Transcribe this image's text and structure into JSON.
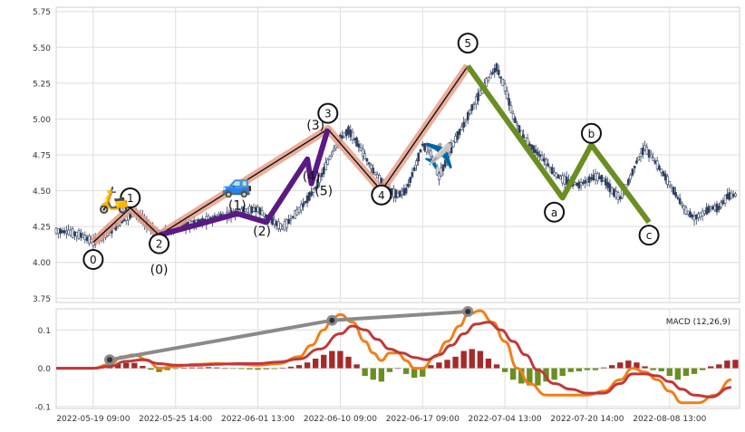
{
  "chart_data": [
    {
      "type": "candlestick",
      "panel": "price",
      "yticks": [
        "3.75",
        "4.00",
        "4.25",
        "4.50",
        "4.75",
        "5.00",
        "5.25",
        "5.50",
        "5.75"
      ],
      "ylim": [
        3.72,
        5.78
      ],
      "xticks": [
        {
          "t": 0,
          "label": "2022-05-19 09:00"
        },
        {
          "t": 20,
          "label": "2022-05-25 14:00"
        },
        {
          "t": 40,
          "label": "2022-06-01 13:00"
        },
        {
          "t": 60,
          "label": "2022-06-10 09:00"
        },
        {
          "t": 80,
          "label": "2022-06-17 09:00"
        },
        {
          "t": 100,
          "label": "2022-07-04 13:00"
        },
        {
          "t": 120,
          "label": "2022-07-20 14:00"
        },
        {
          "t": 140,
          "label": "2022-08-08 13:00"
        }
      ],
      "xlim": [
        -9,
        157
      ],
      "grid": true,
      "price_path": [
        [
          -9,
          4.22
        ],
        [
          -6,
          4.21
        ],
        [
          -3,
          4.19
        ],
        [
          0,
          4.14
        ],
        [
          3,
          4.2
        ],
        [
          6,
          4.26
        ],
        [
          9,
          4.33
        ],
        [
          10,
          4.36
        ],
        [
          12,
          4.3
        ],
        [
          14,
          4.24
        ],
        [
          16,
          4.2
        ],
        [
          19,
          4.22
        ],
        [
          22,
          4.26
        ],
        [
          26,
          4.28
        ],
        [
          30,
          4.31
        ],
        [
          34,
          4.34
        ],
        [
          36,
          4.36
        ],
        [
          40,
          4.37
        ],
        [
          42,
          4.32
        ],
        [
          44,
          4.28
        ],
        [
          46,
          4.24
        ],
        [
          48,
          4.3
        ],
        [
          51,
          4.4
        ],
        [
          54,
          4.52
        ],
        [
          56,
          4.64
        ],
        [
          58,
          4.76
        ],
        [
          60,
          4.86
        ],
        [
          62,
          4.92
        ],
        [
          64,
          4.84
        ],
        [
          66,
          4.74
        ],
        [
          68,
          4.64
        ],
        [
          70,
          4.56
        ],
        [
          72,
          4.5
        ],
        [
          74,
          4.47
        ],
        [
          76,
          4.5
        ],
        [
          78,
          4.65
        ],
        [
          80,
          4.82
        ],
        [
          82,
          4.76
        ],
        [
          84,
          4.6
        ],
        [
          86,
          4.72
        ],
        [
          88,
          4.86
        ],
        [
          90,
          4.96
        ],
        [
          92,
          5.08
        ],
        [
          94,
          5.18
        ],
        [
          96,
          5.28
        ],
        [
          98,
          5.36
        ],
        [
          100,
          5.22
        ],
        [
          102,
          5.02
        ],
        [
          104,
          4.9
        ],
        [
          106,
          4.82
        ],
        [
          108,
          4.76
        ],
        [
          110,
          4.7
        ],
        [
          112,
          4.62
        ],
        [
          114,
          4.58
        ],
        [
          116,
          4.56
        ],
        [
          118,
          4.54
        ],
        [
          120,
          4.57
        ],
        [
          122,
          4.6
        ],
        [
          124,
          4.58
        ],
        [
          126,
          4.5
        ],
        [
          128,
          4.45
        ],
        [
          130,
          4.56
        ],
        [
          132,
          4.7
        ],
        [
          134,
          4.8
        ],
        [
          136,
          4.72
        ],
        [
          138,
          4.64
        ],
        [
          140,
          4.55
        ],
        [
          142,
          4.45
        ],
        [
          144,
          4.36
        ],
        [
          146,
          4.31
        ],
        [
          148,
          4.34
        ],
        [
          150,
          4.38
        ],
        [
          152,
          4.38
        ],
        [
          154,
          4.46
        ],
        [
          156,
          4.47
        ]
      ],
      "primary_wave_line": [
        [
          0,
          4.14
        ],
        [
          9,
          4.38
        ],
        [
          16,
          4.19
        ],
        [
          57,
          4.93
        ],
        [
          70,
          4.5
        ],
        [
          91,
          5.37
        ]
      ],
      "primary_wave_color": "#e8a08a",
      "subwave_line": [
        [
          16,
          4.19
        ],
        [
          35,
          4.34
        ],
        [
          42,
          4.28
        ],
        [
          52,
          4.72
        ],
        [
          53,
          4.55
        ],
        [
          57,
          4.93
        ]
      ],
      "subwave_color": "#5a1a86",
      "correction_line": [
        [
          91,
          5.37
        ],
        [
          114,
          4.45
        ],
        [
          121,
          4.82
        ],
        [
          135,
          4.28
        ]
      ],
      "correction_color": "#6b8e23",
      "labels": [
        {
          "t": 0,
          "v": 4.02,
          "text": "0",
          "circle": true
        },
        {
          "t": 9,
          "v": 4.45,
          "text": "1",
          "circle": true
        },
        {
          "t": 16,
          "v": 4.13,
          "text": "2",
          "circle": true
        },
        {
          "t": 57,
          "v": 5.04,
          "text": "3",
          "circle": true
        },
        {
          "t": 70,
          "v": 4.47,
          "text": "4",
          "circle": true
        },
        {
          "t": 91,
          "v": 5.53,
          "text": "5",
          "circle": true
        },
        {
          "t": 112,
          "v": 4.35,
          "text": "a",
          "circle": true
        },
        {
          "t": 121,
          "v": 4.9,
          "text": "b",
          "circle": true
        },
        {
          "t": 135,
          "v": 4.19,
          "text": "c",
          "circle": true
        },
        {
          "t": 16,
          "v": 3.95,
          "text": "(0)",
          "circle": false
        },
        {
          "t": 35,
          "v": 4.4,
          "text": "(1)",
          "circle": false
        },
        {
          "t": 41,
          "v": 4.22,
          "text": "(2)",
          "circle": false
        },
        {
          "t": 54,
          "v": 4.96,
          "text": "(3)",
          "circle": false
        },
        {
          "t": 53,
          "v": 4.6,
          "text": "(4)",
          "circle": false
        },
        {
          "t": 56,
          "v": 4.5,
          "text": "(5)",
          "circle": false
        }
      ],
      "emojis": [
        {
          "name": "scooter-icon",
          "t": 5,
          "v": 4.44,
          "char": "🛵"
        },
        {
          "name": "car-icon",
          "t": 35,
          "v": 4.55,
          "char": "🚙"
        },
        {
          "name": "airplane-icon",
          "t": 84,
          "v": 4.75,
          "char": "✈️"
        }
      ]
    },
    {
      "type": "macd",
      "panel": "indicator",
      "legend": "MACD (12,26,9)",
      "yticks": [
        "-0.1",
        "0.0",
        "0.1"
      ],
      "ylim": [
        -0.105,
        0.155
      ],
      "xlim": [
        -9,
        157
      ],
      "macd_line": [
        [
          -9,
          0.0
        ],
        [
          -4,
          0.0
        ],
        [
          0,
          0.0
        ],
        [
          4,
          0.01
        ],
        [
          7,
          0.03
        ],
        [
          10,
          0.035
        ],
        [
          13,
          0.022
        ],
        [
          16,
          0.0
        ],
        [
          20,
          0.005
        ],
        [
          25,
          0.01
        ],
        [
          30,
          0.012
        ],
        [
          35,
          0.01
        ],
        [
          40,
          0.008
        ],
        [
          45,
          0.012
        ],
        [
          50,
          0.03
        ],
        [
          53,
          0.06
        ],
        [
          56,
          0.1
        ],
        [
          58,
          0.13
        ],
        [
          60,
          0.14
        ],
        [
          63,
          0.12
        ],
        [
          66,
          0.07
        ],
        [
          68,
          0.04
        ],
        [
          70,
          0.02
        ],
        [
          72,
          0.04
        ],
        [
          74,
          0.04
        ],
        [
          76,
          0.02
        ],
        [
          78,
          0.0
        ],
        [
          80,
          0.0
        ],
        [
          83,
          0.03
        ],
        [
          86,
          0.07
        ],
        [
          89,
          0.11
        ],
        [
          91,
          0.14
        ],
        [
          94,
          0.15
        ],
        [
          97,
          0.12
        ],
        [
          100,
          0.07
        ],
        [
          103,
          0.0
        ],
        [
          106,
          -0.04
        ],
        [
          110,
          -0.07
        ],
        [
          115,
          -0.07
        ],
        [
          120,
          -0.07
        ],
        [
          124,
          -0.06
        ],
        [
          128,
          -0.03
        ],
        [
          131,
          0.0
        ],
        [
          134,
          -0.01
        ],
        [
          137,
          -0.03
        ],
        [
          140,
          -0.06
        ],
        [
          143,
          -0.09
        ],
        [
          147,
          -0.09
        ],
        [
          151,
          -0.07
        ],
        [
          155,
          -0.03
        ]
      ],
      "macd_color": "#f07f1a",
      "signal_line": [
        [
          -9,
          0.0
        ],
        [
          0,
          0.0
        ],
        [
          4,
          0.005
        ],
        [
          8,
          0.018
        ],
        [
          12,
          0.022
        ],
        [
          16,
          0.012
        ],
        [
          20,
          0.008
        ],
        [
          25,
          0.008
        ],
        [
          30,
          0.01
        ],
        [
          35,
          0.012
        ],
        [
          40,
          0.012
        ],
        [
          45,
          0.016
        ],
        [
          50,
          0.024
        ],
        [
          55,
          0.05
        ],
        [
          60,
          0.09
        ],
        [
          63,
          0.11
        ],
        [
          66,
          0.1
        ],
        [
          69,
          0.075
        ],
        [
          72,
          0.05
        ],
        [
          75,
          0.04
        ],
        [
          78,
          0.028
        ],
        [
          81,
          0.022
        ],
        [
          84,
          0.035
        ],
        [
          87,
          0.06
        ],
        [
          90,
          0.09
        ],
        [
          93,
          0.115
        ],
        [
          96,
          0.12
        ],
        [
          99,
          0.1
        ],
        [
          102,
          0.07
        ],
        [
          105,
          0.035
        ],
        [
          108,
          -0.005
        ],
        [
          112,
          -0.04
        ],
        [
          116,
          -0.055
        ],
        [
          120,
          -0.065
        ],
        [
          124,
          -0.065
        ],
        [
          128,
          -0.04
        ],
        [
          131,
          -0.015
        ],
        [
          134,
          -0.015
        ],
        [
          137,
          -0.02
        ],
        [
          140,
          -0.035
        ],
        [
          143,
          -0.055
        ],
        [
          146,
          -0.07
        ],
        [
          150,
          -0.075
        ],
        [
          155,
          -0.05
        ]
      ],
      "signal_color": "#c0393b",
      "histogram": [
        [
          0,
          0.0
        ],
        [
          2,
          0.003
        ],
        [
          4,
          0.006
        ],
        [
          6,
          0.011
        ],
        [
          8,
          0.014
        ],
        [
          10,
          0.014
        ],
        [
          12,
          0.006
        ],
        [
          14,
          -0.004
        ],
        [
          16,
          -0.01
        ],
        [
          18,
          -0.005
        ],
        [
          20,
          -0.002
        ],
        [
          22,
          0.001
        ],
        [
          24,
          0.002
        ],
        [
          26,
          0.002
        ],
        [
          28,
          0.003
        ],
        [
          30,
          0.002
        ],
        [
          32,
          0.0
        ],
        [
          34,
          -0.001
        ],
        [
          36,
          -0.002
        ],
        [
          38,
          -0.003
        ],
        [
          40,
          -0.004
        ],
        [
          42,
          -0.003
        ],
        [
          44,
          -0.002
        ],
        [
          46,
          0.001
        ],
        [
          48,
          0.004
        ],
        [
          50,
          0.008
        ],
        [
          52,
          0.015
        ],
        [
          54,
          0.025
        ],
        [
          56,
          0.035
        ],
        [
          58,
          0.045
        ],
        [
          60,
          0.045
        ],
        [
          62,
          0.03
        ],
        [
          64,
          0.01
        ],
        [
          66,
          -0.02
        ],
        [
          68,
          -0.03
        ],
        [
          70,
          -0.035
        ],
        [
          72,
          -0.01
        ],
        [
          74,
          0.0
        ],
        [
          76,
          -0.015
        ],
        [
          78,
          -0.025
        ],
        [
          80,
          -0.022
        ],
        [
          82,
          0.008
        ],
        [
          84,
          0.015
        ],
        [
          86,
          0.022
        ],
        [
          88,
          0.03
        ],
        [
          90,
          0.045
        ],
        [
          92,
          0.05
        ],
        [
          94,
          0.045
        ],
        [
          96,
          0.025
        ],
        [
          98,
          0.01
        ],
        [
          100,
          -0.01
        ],
        [
          102,
          -0.03
        ],
        [
          104,
          -0.04
        ],
        [
          106,
          -0.045
        ],
        [
          108,
          -0.045
        ],
        [
          110,
          -0.035
        ],
        [
          112,
          -0.03
        ],
        [
          114,
          -0.02
        ],
        [
          116,
          -0.01
        ],
        [
          118,
          -0.008
        ],
        [
          120,
          -0.005
        ],
        [
          122,
          -0.005
        ],
        [
          124,
          0.002
        ],
        [
          126,
          0.008
        ],
        [
          128,
          0.015
        ],
        [
          130,
          0.02
        ],
        [
          132,
          0.015
        ],
        [
          134,
          0.005
        ],
        [
          136,
          -0.005
        ],
        [
          138,
          -0.008
        ],
        [
          140,
          -0.02
        ],
        [
          142,
          -0.03
        ],
        [
          144,
          -0.02
        ],
        [
          146,
          -0.015
        ],
        [
          148,
          -0.005
        ],
        [
          150,
          0.005
        ],
        [
          152,
          0.01
        ],
        [
          154,
          0.02
        ],
        [
          156,
          0.022
        ]
      ],
      "hist_pos_color": "#a52a2a",
      "hist_neg_color": "#6b8e23",
      "divergence_line": [
        [
          4,
          0.022
        ],
        [
          58,
          0.125
        ],
        [
          91,
          0.148
        ]
      ],
      "divergence_color": "#8a8a8a"
    }
  ]
}
